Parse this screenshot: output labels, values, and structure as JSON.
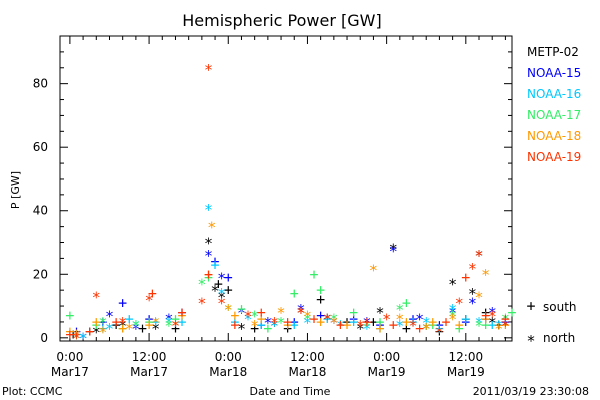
{
  "chart_data": {
    "type": "scatter",
    "title": "Hemispheric Power [GW]",
    "xlabel": "Date and Time",
    "ylabel": "P [GW]",
    "xlim_hours": [
      -1.5,
      67
    ],
    "ylim": [
      -1,
      95
    ],
    "grid": false,
    "y_ticks": [
      0,
      20,
      40,
      60,
      80
    ],
    "x_ticks": [
      {
        "hour": 0,
        "line1": "0:00",
        "line2": "Mar17"
      },
      {
        "hour": 12,
        "line1": "12:00",
        "line2": "Mar17"
      },
      {
        "hour": 24,
        "line1": "0:00",
        "line2": "Mar18"
      },
      {
        "hour": 36,
        "line1": "12:00",
        "line2": "Mar18"
      },
      {
        "hour": 48,
        "line1": "0:00",
        "line2": "Mar19"
      },
      {
        "hour": 60,
        "line1": "12:00",
        "line2": "Mar19"
      }
    ],
    "legend_placement": "right",
    "markers": {
      "south": "+",
      "north": "*"
    },
    "marker_legend": [
      {
        "symbol": "+",
        "label": "south"
      },
      {
        "symbol": "*",
        "label": "north"
      }
    ],
    "series": [
      {
        "name": "METP-02",
        "color": "#000000",
        "north": [
          [
            1,
            2
          ],
          [
            4,
            3
          ],
          [
            8,
            5
          ],
          [
            13,
            4
          ],
          [
            21,
            31
          ],
          [
            22,
            16
          ],
          [
            23,
            14
          ],
          [
            26,
            4
          ],
          [
            31,
            5
          ],
          [
            35,
            9
          ],
          [
            39,
            7
          ],
          [
            44,
            4
          ],
          [
            47,
            9
          ],
          [
            49,
            29
          ],
          [
            54,
            4
          ],
          [
            58,
            18
          ],
          [
            61,
            15
          ],
          [
            62,
            27
          ],
          [
            64,
            6
          ],
          [
            66,
            5
          ]
        ],
        "south": [
          [
            0.5,
            1
          ],
          [
            3,
            2
          ],
          [
            7,
            4
          ],
          [
            11,
            3
          ],
          [
            16,
            3
          ],
          [
            22.5,
            17
          ],
          [
            24,
            15
          ],
          [
            28,
            3
          ],
          [
            33,
            3
          ],
          [
            38,
            12
          ],
          [
            42,
            5
          ],
          [
            46,
            5
          ],
          [
            51,
            3
          ],
          [
            56,
            2
          ],
          [
            60,
            6
          ],
          [
            63,
            8
          ],
          [
            65,
            4
          ]
        ]
      },
      {
        "name": "NOAA-15",
        "color": "#0000ff",
        "north": [
          [
            2,
            1
          ],
          [
            6,
            8
          ],
          [
            10,
            4
          ],
          [
            15,
            7
          ],
          [
            21,
            27
          ],
          [
            23,
            20
          ],
          [
            26,
            9
          ],
          [
            30,
            6
          ],
          [
            35,
            10
          ],
          [
            40,
            6
          ],
          [
            45,
            6
          ],
          [
            49,
            28.5
          ],
          [
            53,
            7
          ],
          [
            58,
            9
          ],
          [
            61,
            12
          ],
          [
            64,
            9
          ]
        ],
        "south": [
          [
            1,
            2
          ],
          [
            5,
            5
          ],
          [
            8,
            11
          ],
          [
            12,
            6
          ],
          [
            17,
            8
          ],
          [
            22,
            24
          ],
          [
            24,
            19
          ],
          [
            29,
            4
          ],
          [
            34,
            5
          ],
          [
            38,
            7
          ],
          [
            43,
            6
          ],
          [
            47,
            4
          ],
          [
            52,
            6
          ],
          [
            56,
            4
          ],
          [
            60,
            5
          ],
          [
            63,
            6
          ],
          [
            66,
            5
          ]
        ]
      },
      {
        "name": "NOAA-16",
        "color": "#00c8ff",
        "north": [
          [
            2,
            1
          ],
          [
            6,
            4
          ],
          [
            10,
            5
          ],
          [
            15,
            6
          ],
          [
            21,
            41.5
          ],
          [
            23,
            15
          ],
          [
            27,
            7
          ],
          [
            31,
            5
          ],
          [
            36,
            6
          ],
          [
            41,
            5
          ],
          [
            45,
            4
          ],
          [
            50,
            5
          ],
          [
            54,
            6
          ],
          [
            58,
            10
          ],
          [
            62,
            6
          ],
          [
            65,
            5
          ]
        ],
        "south": [
          [
            1,
            1
          ],
          [
            5,
            3
          ],
          [
            9,
            6
          ],
          [
            13,
            5
          ],
          [
            17,
            5
          ],
          [
            22,
            23
          ],
          [
            25,
            5
          ],
          [
            29,
            4
          ],
          [
            34,
            4
          ],
          [
            39,
            6
          ],
          [
            43,
            5
          ],
          [
            47,
            3
          ],
          [
            52,
            5
          ],
          [
            56,
            3
          ],
          [
            60,
            6
          ],
          [
            64,
            4
          ]
        ]
      },
      {
        "name": "NOAA-17",
        "color": "#33ee66",
        "north": [
          [
            1,
            1
          ],
          [
            5,
            6
          ],
          [
            10,
            5
          ],
          [
            15,
            5
          ],
          [
            20,
            18
          ],
          [
            24,
            10
          ],
          [
            28,
            8
          ],
          [
            32,
            6
          ],
          [
            36,
            7
          ],
          [
            40,
            7
          ],
          [
            45,
            5
          ],
          [
            50,
            10
          ],
          [
            54,
            4
          ],
          [
            58,
            8
          ],
          [
            62,
            5
          ],
          [
            66,
            7
          ]
        ],
        "south": [
          [
            0,
            7
          ],
          [
            4,
            4
          ],
          [
            8,
            3
          ],
          [
            12,
            5
          ],
          [
            16,
            6
          ],
          [
            21,
            19
          ],
          [
            26,
            9
          ],
          [
            30,
            3
          ],
          [
            34,
            14
          ],
          [
            37,
            20
          ],
          [
            38,
            15
          ],
          [
            43,
            8
          ],
          [
            47,
            5
          ],
          [
            51,
            11
          ],
          [
            55,
            4
          ],
          [
            59,
            3
          ],
          [
            63,
            4
          ],
          [
            67,
            8
          ]
        ]
      },
      {
        "name": "NOAA-18",
        "color": "#ff9900",
        "north": [
          [
            1,
            2
          ],
          [
            5,
            3
          ],
          [
            9,
            4
          ],
          [
            13,
            6
          ],
          [
            16,
            5
          ],
          [
            21.5,
            36
          ],
          [
            24,
            10
          ],
          [
            28,
            5
          ],
          [
            32,
            9
          ],
          [
            36,
            8
          ],
          [
            40,
            6
          ],
          [
            46,
            22.5
          ],
          [
            50,
            7
          ],
          [
            54,
            4
          ],
          [
            58,
            7
          ],
          [
            62,
            14
          ],
          [
            63,
            21
          ],
          [
            65,
            4
          ]
        ],
        "south": [
          [
            0,
            2
          ],
          [
            4,
            5
          ],
          [
            8,
            3
          ],
          [
            12,
            4
          ],
          [
            17,
            7
          ],
          [
            21,
            20
          ],
          [
            25,
            7
          ],
          [
            29,
            6
          ],
          [
            33,
            4
          ],
          [
            38,
            5
          ],
          [
            42,
            4
          ],
          [
            47,
            3
          ],
          [
            51,
            5
          ],
          [
            55,
            5
          ],
          [
            59,
            4
          ],
          [
            63,
            6
          ],
          [
            66,
            4
          ]
        ]
      },
      {
        "name": "NOAA-19",
        "color": "#ff3300",
        "north": [
          [
            1,
            1
          ],
          [
            4,
            14
          ],
          [
            8,
            6
          ],
          [
            12,
            13
          ],
          [
            16,
            5
          ],
          [
            20,
            12
          ],
          [
            21,
            85.5
          ],
          [
            23,
            12
          ],
          [
            27,
            8
          ],
          [
            31,
            6
          ],
          [
            35,
            9
          ],
          [
            39,
            7
          ],
          [
            44,
            5
          ],
          [
            48,
            7
          ],
          [
            52,
            5
          ],
          [
            56,
            3
          ],
          [
            59,
            12
          ],
          [
            61,
            23
          ],
          [
            62,
            27
          ],
          [
            64,
            8
          ],
          [
            66,
            5
          ]
        ],
        "south": [
          [
            0,
            1
          ],
          [
            3,
            2
          ],
          [
            7,
            5
          ],
          [
            12.5,
            14
          ],
          [
            17,
            8
          ],
          [
            21,
            20
          ],
          [
            25,
            4
          ],
          [
            29,
            8
          ],
          [
            33,
            5
          ],
          [
            37,
            6
          ],
          [
            41,
            4
          ],
          [
            45,
            5
          ],
          [
            49,
            4
          ],
          [
            53,
            3
          ],
          [
            57,
            5
          ],
          [
            60,
            19
          ],
          [
            63,
            7
          ],
          [
            66,
            6
          ]
        ]
      }
    ]
  },
  "footer": {
    "left": "Plot: CCMC",
    "right": "2011/03/19 23:30:08"
  }
}
